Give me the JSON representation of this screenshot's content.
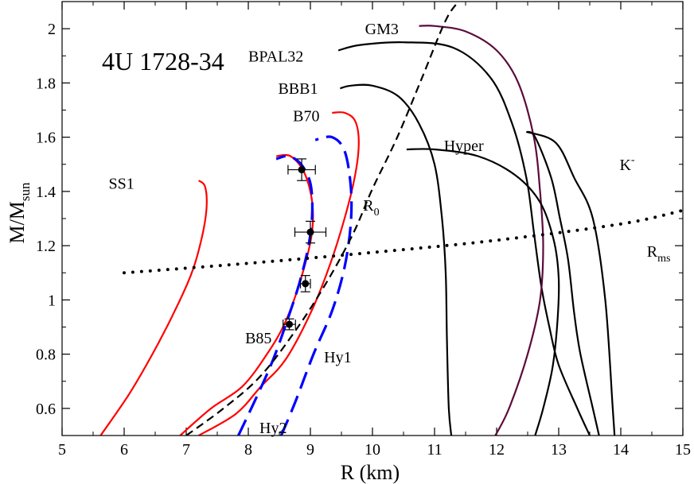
{
  "chart_data": {
    "type": "line",
    "title": "4U 1728-34",
    "xlabel": "R (km)",
    "ylabel_main": "M/M",
    "ylabel_sub": "sun",
    "xlim": [
      5,
      15
    ],
    "ylim": [
      0.5,
      2.1
    ],
    "xticks": [
      "5",
      "6",
      "7",
      "8",
      "9",
      "10",
      "11",
      "12",
      "13",
      "14",
      "15"
    ],
    "yticks": [
      "0.6",
      "0.8",
      "1",
      "1.2",
      "1.4",
      "1.6",
      "1.8",
      "2"
    ],
    "colors": {
      "red": "#ff0000",
      "blue": "#0000ff",
      "purple": "#5c0a3c",
      "black": "#000000"
    },
    "series": [
      {
        "name": "SS1",
        "color": "red",
        "dash": "solid",
        "points": [
          [
            5.62,
            0.5
          ],
          [
            6.1,
            0.66
          ],
          [
            6.55,
            0.84
          ],
          [
            6.9,
            1.0
          ],
          [
            7.12,
            1.12
          ],
          [
            7.27,
            1.25
          ],
          [
            7.33,
            1.35
          ],
          [
            7.3,
            1.42
          ],
          [
            7.2,
            1.44
          ]
        ]
      },
      {
        "name": "B85",
        "color": "red",
        "dash": "solid",
        "points": [
          [
            6.9,
            0.5
          ],
          [
            7.4,
            0.6
          ],
          [
            7.9,
            0.68
          ],
          [
            8.3,
            0.8
          ],
          [
            8.6,
            0.92
          ],
          [
            8.85,
            1.08
          ],
          [
            9.02,
            1.24
          ],
          [
            9.03,
            1.36
          ],
          [
            8.9,
            1.47
          ],
          [
            8.68,
            1.53
          ],
          [
            8.45,
            1.53
          ]
        ]
      },
      {
        "name": "B70",
        "color": "red",
        "dash": "solid",
        "points": [
          [
            7.2,
            0.5
          ],
          [
            7.8,
            0.58
          ],
          [
            8.2,
            0.68
          ],
          [
            8.6,
            0.78
          ],
          [
            9.0,
            0.95
          ],
          [
            9.3,
            1.12
          ],
          [
            9.55,
            1.3
          ],
          [
            9.72,
            1.46
          ],
          [
            9.78,
            1.58
          ],
          [
            9.72,
            1.66
          ],
          [
            9.55,
            1.69
          ],
          [
            9.35,
            1.69
          ]
        ]
      },
      {
        "name": "Hy2",
        "color": "blue",
        "dash": "dashed",
        "points": [
          [
            7.84,
            0.5
          ],
          [
            8.15,
            0.65
          ],
          [
            8.4,
            0.78
          ],
          [
            8.62,
            0.92
          ],
          [
            8.82,
            1.06
          ],
          [
            8.97,
            1.2
          ],
          [
            9.03,
            1.32
          ],
          [
            9.0,
            1.43
          ],
          [
            8.85,
            1.5
          ],
          [
            8.65,
            1.53
          ],
          [
            8.45,
            1.52
          ]
        ]
      },
      {
        "name": "Hy1",
        "color": "blue",
        "dash": "dashed",
        "points": [
          [
            8.53,
            0.5
          ],
          [
            8.75,
            0.62
          ],
          [
            9.05,
            0.8
          ],
          [
            9.35,
            0.96
          ],
          [
            9.55,
            1.12
          ],
          [
            9.65,
            1.28
          ],
          [
            9.65,
            1.42
          ],
          [
            9.55,
            1.55
          ],
          [
            9.35,
            1.6
          ],
          [
            9.08,
            1.59
          ]
        ]
      },
      {
        "name": "BBB1",
        "color": "black",
        "dash": "solid",
        "points": [
          [
            11.27,
            0.5
          ],
          [
            11.23,
            0.6
          ],
          [
            11.2,
            0.85
          ],
          [
            11.18,
            1.1
          ],
          [
            11.12,
            1.3
          ],
          [
            11.0,
            1.5
          ],
          [
            10.75,
            1.65
          ],
          [
            10.42,
            1.75
          ],
          [
            10.0,
            1.79
          ],
          [
            9.65,
            1.79
          ],
          [
            9.48,
            1.78
          ]
        ]
      },
      {
        "name": "BPAL32",
        "color": "black",
        "dash": "solid",
        "points": [
          [
            13.5,
            0.5
          ],
          [
            13.3,
            0.6
          ],
          [
            13.0,
            0.76
          ],
          [
            12.85,
            0.9
          ],
          [
            12.72,
            1.05
          ],
          [
            12.6,
            1.25
          ],
          [
            12.48,
            1.45
          ],
          [
            12.25,
            1.65
          ],
          [
            11.9,
            1.82
          ],
          [
            11.3,
            1.93
          ],
          [
            10.5,
            1.95
          ],
          [
            9.8,
            1.94
          ],
          [
            9.45,
            1.92
          ]
        ]
      },
      {
        "name": "GM3",
        "color": "purple",
        "dash": "solid",
        "points": [
          [
            11.98,
            0.5
          ],
          [
            12.2,
            0.6
          ],
          [
            12.5,
            0.8
          ],
          [
            12.7,
            1.0
          ],
          [
            12.75,
            1.2
          ],
          [
            12.7,
            1.4
          ],
          [
            12.6,
            1.6
          ],
          [
            12.35,
            1.8
          ],
          [
            12.0,
            1.92
          ],
          [
            11.5,
            1.99
          ],
          [
            11.0,
            2.01
          ],
          [
            10.75,
            2.01
          ]
        ]
      },
      {
        "name": "Hyper",
        "color": "black",
        "dash": "solid",
        "points": [
          [
            12.62,
            0.5
          ],
          [
            12.75,
            0.6
          ],
          [
            12.9,
            0.75
          ],
          [
            12.98,
            0.92
          ],
          [
            13.0,
            1.08
          ],
          [
            12.92,
            1.22
          ],
          [
            12.7,
            1.36
          ],
          [
            12.3,
            1.46
          ],
          [
            11.7,
            1.53
          ],
          [
            11.0,
            1.555
          ],
          [
            10.55,
            1.555
          ]
        ]
      },
      {
        "name": "K-",
        "color": "black",
        "dash": "solid",
        "points": [
          [
            13.65,
            0.5
          ],
          [
            13.55,
            0.6
          ],
          [
            13.35,
            0.8
          ],
          [
            13.25,
            0.95
          ],
          [
            13.15,
            1.15
          ],
          [
            13.02,
            1.3
          ],
          [
            12.88,
            1.45
          ],
          [
            12.62,
            1.6
          ],
          [
            12.48,
            1.62
          ]
        ]
      },
      {
        "name": "K-tail",
        "color": "black",
        "dash": "solid",
        "points": [
          [
            12.48,
            1.62
          ],
          [
            12.95,
            1.58
          ],
          [
            13.25,
            1.45
          ],
          [
            13.55,
            1.3
          ],
          [
            13.75,
            1.0
          ],
          [
            13.87,
            0.6
          ],
          [
            13.9,
            0.5
          ]
        ]
      },
      {
        "name": "R0",
        "color": "black",
        "dash": "dashed",
        "points": [
          [
            7.0,
            0.5
          ],
          [
            7.6,
            0.6
          ],
          [
            8.2,
            0.72
          ],
          [
            8.8,
            0.9
          ],
          [
            9.3,
            1.08
          ],
          [
            9.7,
            1.25
          ],
          [
            10.0,
            1.41
          ],
          [
            10.4,
            1.6
          ],
          [
            10.8,
            1.82
          ],
          [
            11.2,
            2.04
          ],
          [
            11.48,
            2.12
          ]
        ]
      },
      {
        "name": "Rms",
        "color": "black",
        "dash": "dotted",
        "points": [
          [
            6.0,
            1.1
          ],
          [
            8.0,
            1.135
          ],
          [
            10.0,
            1.175
          ],
          [
            12.0,
            1.22
          ],
          [
            14.0,
            1.28
          ],
          [
            15.0,
            1.33
          ]
        ]
      }
    ],
    "curve_labels": [
      {
        "text": "SS1",
        "x": 5.75,
        "y": 1.43
      },
      {
        "text": "B85",
        "x": 7.95,
        "y": 0.86
      },
      {
        "text": "B70",
        "x": 8.72,
        "y": 1.68
      },
      {
        "text": "Hy2",
        "x": 8.18,
        "y": 0.53
      },
      {
        "text": "Hy1",
        "x": 9.22,
        "y": 0.79
      },
      {
        "text": "BBB1",
        "x": 8.48,
        "y": 1.78
      },
      {
        "text": "BPAL32",
        "x": 8.0,
        "y": 1.9
      },
      {
        "text": "GM3",
        "x": 9.88,
        "y": 2.0
      },
      {
        "text": "Hyper",
        "x": 11.15,
        "y": 1.57
      },
      {
        "text": "R",
        "sub": "0",
        "x": 9.85,
        "y": 1.35
      },
      {
        "text": "R",
        "sub": "ms",
        "x": 14.42,
        "y": 1.18
      },
      {
        "text": "K",
        "sup": "-",
        "x": 13.98,
        "y": 1.5
      }
    ],
    "data_points": [
      {
        "x": 8.86,
        "y": 1.48,
        "xerr": 0.22,
        "yerr": 0.04
      },
      {
        "x": 9.0,
        "y": 1.25,
        "xerr": 0.25,
        "yerr": 0.04
      },
      {
        "x": 8.92,
        "y": 1.06,
        "xerr": 0.08,
        "yerr": 0.03
      },
      {
        "x": 8.66,
        "y": 0.91,
        "xerr": 0.1,
        "yerr": 0.02
      }
    ]
  }
}
